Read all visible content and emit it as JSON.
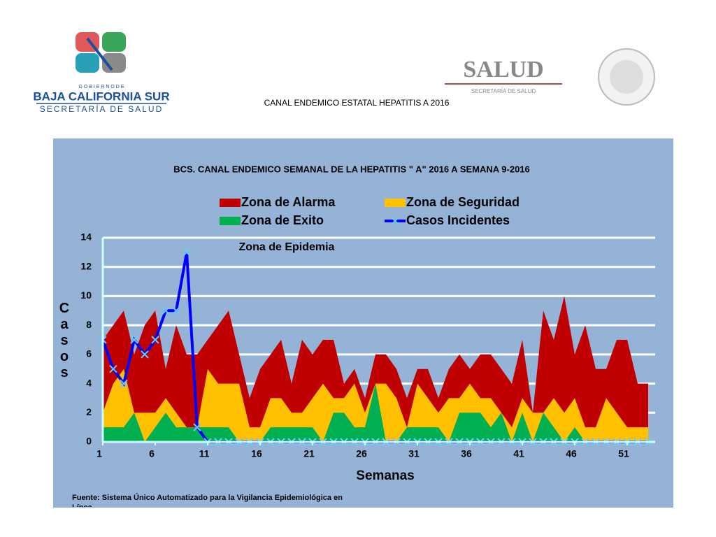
{
  "header": {
    "gov_line": "G O B I E R N O   D E",
    "state": "BAJA CALIFORNIA SUR",
    "state_dept": "SECRETARÍA DE SALUD",
    "salud": "SALUD",
    "salud_dept": "SECRETARÍA DE SALUD",
    "title": "CANAL ENDEMICO ESTATAL HEPATITIS A 2016"
  },
  "chart_data": {
    "type": "area",
    "title": "BCS. CANAL ENDEMICO SEMANAL DE LA HEPATITIS \" A\"  2016 A SEMANA 9-2016",
    "annotation": "Zona de Epidemia",
    "x_label": "Semanas",
    "y_label": "Casos",
    "source": "Fuente: Sistema Único Automatizado para la Vigilancia Epidemiológica en Línea",
    "x": [
      1,
      2,
      3,
      4,
      5,
      6,
      7,
      8,
      9,
      10,
      11,
      12,
      13,
      14,
      15,
      16,
      17,
      18,
      19,
      20,
      21,
      22,
      23,
      24,
      25,
      26,
      27,
      28,
      29,
      30,
      31,
      32,
      33,
      34,
      35,
      36,
      37,
      38,
      39,
      40,
      41,
      42,
      43,
      44,
      45,
      46,
      47,
      48,
      49,
      50,
      51,
      52,
      53
    ],
    "xlim": [
      1,
      53
    ],
    "xticks": [
      1,
      6,
      11,
      16,
      21,
      26,
      31,
      36,
      41,
      46,
      51
    ],
    "ylim": [
      0,
      14
    ],
    "yticks": [
      0,
      2,
      4,
      6,
      8,
      10,
      12,
      14
    ],
    "grid": true,
    "series": [
      {
        "name": "Zona de Alarma",
        "type": "area",
        "color": "#c00000",
        "values": [
          7,
          8,
          9,
          6,
          8,
          9,
          5,
          8,
          6,
          6,
          7,
          8,
          9,
          6,
          3,
          5,
          6,
          7,
          4,
          7,
          6,
          7,
          7,
          4,
          5,
          3,
          6,
          6,
          5,
          3,
          5,
          5,
          3,
          5,
          6,
          5,
          6,
          6,
          5,
          4,
          7,
          2,
          9,
          7,
          10,
          6,
          8,
          5,
          5,
          7,
          7,
          4,
          4
        ]
      },
      {
        "name": "Zona de Seguridad",
        "type": "area",
        "color": "#ffc000",
        "values": [
          2,
          4,
          5,
          2,
          2,
          2,
          3,
          2,
          1,
          1,
          5,
          4,
          4,
          4,
          1,
          1,
          3,
          3,
          2,
          2,
          3,
          4,
          3,
          3,
          4,
          2,
          4,
          4,
          3,
          1,
          4,
          3,
          2,
          3,
          3,
          4,
          3,
          3,
          2,
          1,
          3,
          2,
          2,
          3,
          2,
          3,
          1,
          1,
          3,
          2,
          1,
          1,
          1
        ]
      },
      {
        "name": "Zona de Exito",
        "type": "area",
        "color": "#00b050",
        "values": [
          1,
          1,
          1,
          2,
          0,
          1,
          2,
          1,
          1,
          1,
          1,
          1,
          1,
          0,
          0,
          0,
          1,
          1,
          1,
          1,
          1,
          0,
          2,
          2,
          1,
          1,
          4,
          0,
          0,
          1,
          1,
          1,
          1,
          0,
          2,
          2,
          2,
          1,
          2,
          0,
          2,
          0,
          2,
          1,
          0,
          1,
          0,
          0,
          0,
          0,
          0,
          0,
          0
        ]
      },
      {
        "name": "Casos Incidentes",
        "type": "line",
        "color": "#0000ff",
        "marker_color": "#66ccff",
        "values": [
          7,
          5,
          4,
          7,
          6,
          7,
          9,
          9,
          13,
          1,
          0,
          0,
          0,
          0,
          0,
          0,
          0,
          0,
          0,
          0,
          0,
          0,
          0,
          0,
          0,
          0,
          0,
          0,
          0,
          0,
          0,
          0,
          0,
          0,
          0,
          0,
          0,
          0,
          0,
          0,
          0,
          0,
          0,
          0,
          0,
          0,
          0,
          0,
          0,
          0,
          0,
          0,
          0
        ]
      }
    ]
  }
}
